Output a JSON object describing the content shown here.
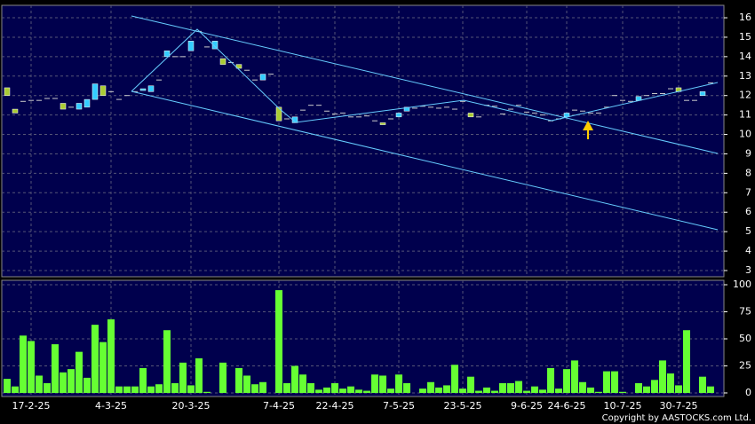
{
  "chart_data": {
    "type": "candlestick",
    "categories": [
      null,
      null,
      null,
      "17-2-25",
      null,
      null,
      null,
      null,
      null,
      null,
      null,
      null,
      null,
      "4-3-25",
      null,
      null,
      null,
      null,
      null,
      null,
      null,
      null,
      null,
      "20-3-25",
      null,
      null,
      null,
      null,
      null,
      null,
      null,
      null,
      null,
      null,
      "7-4-25",
      null,
      null,
      null,
      null,
      null,
      null,
      "22-4-25",
      null,
      null,
      null,
      null,
      null,
      null,
      null,
      "7-5-25",
      null,
      null,
      null,
      null,
      null,
      null,
      null,
      "23-5-25",
      null,
      null,
      null,
      null,
      null,
      null,
      null,
      "9-6-25",
      null,
      null,
      null,
      null,
      "24-6-25",
      null,
      null,
      null,
      null,
      null,
      null,
      "10-7-25",
      null,
      null,
      null,
      null,
      null,
      null,
      "30-7-25",
      null,
      null,
      null,
      null
    ],
    "open": [
      12.4,
      11.3,
      11.7,
      11.75,
      11.75,
      11.85,
      11.85,
      11.6,
      11.4,
      11.3,
      11.4,
      11.8,
      12.5,
      12.2,
      11.8,
      12.0,
      12.2,
      12.3,
      12.2,
      12.8,
      14.0,
      14.0,
      14.0,
      14.3,
      15.3,
      14.5,
      14.4,
      13.9,
      13.7,
      13.6,
      13.3,
      12.8,
      12.8,
      13.1,
      11.4,
      10.8,
      10.6,
      11.25,
      11.5,
      11.5,
      11.2,
      11.05,
      11.1,
      10.9,
      10.9,
      10.95,
      10.7,
      10.6,
      10.8,
      10.9,
      11.2,
      11.35,
      11.45,
      11.4,
      11.35,
      11.4,
      11.3,
      11.7,
      11.1,
      10.9,
      11.5,
      11.45,
      11.05,
      11.3,
      11.5,
      11.15,
      11.1,
      11.0,
      10.7,
      10.8,
      10.9,
      11.25,
      11.2,
      11.1,
      11.1,
      11.4,
      12.0,
      11.75,
      11.7,
      11.75,
      12.0,
      12.1,
      12.1,
      12.35,
      12.4,
      11.75,
      11.75,
      12.0,
      12.65
    ],
    "close": [
      12.0,
      11.1,
      11.7,
      11.75,
      11.75,
      11.85,
      11.85,
      11.3,
      11.4,
      11.6,
      11.8,
      12.6,
      12.0,
      12.2,
      11.8,
      12.0,
      12.2,
      12.35,
      12.5,
      12.8,
      14.3,
      14.0,
      14.0,
      14.8,
      15.3,
      14.5,
      14.8,
      13.6,
      13.7,
      13.4,
      13.3,
      12.8,
      13.1,
      13.1,
      10.7,
      10.8,
      10.9,
      11.25,
      11.5,
      11.5,
      11.2,
      11.05,
      11.1,
      10.9,
      10.9,
      10.95,
      10.7,
      10.5,
      10.8,
      11.1,
      11.4,
      11.35,
      11.45,
      11.4,
      11.35,
      11.4,
      11.3,
      11.7,
      10.9,
      10.9,
      11.5,
      11.45,
      11.05,
      11.3,
      11.5,
      11.15,
      11.1,
      11.0,
      10.7,
      10.8,
      11.1,
      11.25,
      11.2,
      11.1,
      11.1,
      11.4,
      12.0,
      11.75,
      11.7,
      11.95,
      12.0,
      12.1,
      12.1,
      12.35,
      12.2,
      11.75,
      11.75,
      12.2,
      12.65
    ],
    "volume": [
      13,
      6,
      53,
      48,
      16,
      9,
      45,
      19,
      22,
      38,
      14,
      63,
      47,
      68,
      6,
      6,
      6,
      23,
      6,
      8,
      58,
      9,
      28,
      7,
      32,
      1,
      0,
      28,
      0,
      23,
      16,
      8,
      10,
      0,
      95,
      9,
      25,
      17,
      9,
      3,
      5,
      9,
      4,
      6,
      3,
      2,
      17,
      16,
      4,
      17,
      9,
      0,
      4,
      10,
      5,
      7,
      26,
      4,
      15,
      2,
      5,
      2,
      9,
      9,
      11,
      2,
      6,
      3,
      23,
      4,
      22,
      30,
      10,
      5,
      1,
      20,
      20,
      1,
      0,
      9,
      6,
      12,
      30,
      18,
      7,
      58,
      0,
      15,
      6
    ],
    "up_color": "#33ccff",
    "down_color": "#aacc33",
    "volume_color": "#66ff33",
    "ylim": [
      2.68,
      16.64
    ],
    "yticks": [
      3,
      4,
      5,
      6,
      7,
      8,
      9,
      10,
      11,
      12,
      13,
      14,
      15,
      16
    ],
    "volume_ylim": [
      -3.3,
      104.1
    ],
    "volume_yticks": [
      0,
      25,
      50,
      75,
      100
    ],
    "grid": true,
    "copyright": "Copyright by AASTOCKS.com Ltd."
  }
}
